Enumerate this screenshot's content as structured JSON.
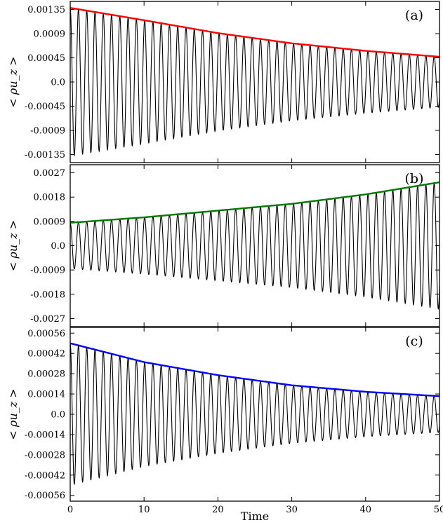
{
  "chart_data": [
    {
      "type": "line",
      "panel_label": "(a)",
      "ylabel": "< ρu_z >",
      "xlabel": "",
      "xlim": [
        0,
        50
      ],
      "ylim": [
        -0.0015,
        0.0015
      ],
      "yticks": [
        0.00135,
        0.0009,
        0.00045,
        0.0,
        -0.00045,
        -0.0009,
        -0.00135
      ],
      "ytick_labels": [
        "0.00135",
        "0.0009",
        "0.00045",
        "0.0",
        "-0.00045",
        "-0.0009",
        "-0.00135"
      ],
      "period": 1.12,
      "series": [
        {
          "role": "oscillation",
          "color": "#000000",
          "x": [
            0,
            10,
            20,
            30,
            40,
            50
          ],
          "amplitude": [
            0.00138,
            0.00115,
            0.00091,
            0.00072,
            0.00058,
            0.00047
          ]
        },
        {
          "role": "envelope",
          "color": "#ff0000",
          "x": [
            0,
            10,
            20,
            30,
            40,
            50
          ],
          "values": [
            0.00138,
            0.00115,
            0.00091,
            0.00072,
            0.00058,
            0.00047
          ]
        }
      ]
    },
    {
      "type": "line",
      "panel_label": "(b)",
      "ylabel": "< ρu_z >",
      "xlabel": "",
      "xlim": [
        0,
        50
      ],
      "ylim": [
        -0.003,
        0.003
      ],
      "yticks": [
        0.0027,
        0.0018,
        0.0009,
        0.0,
        -0.0009,
        -0.0018,
        -0.0027
      ],
      "ytick_labels": [
        "0.0027",
        "0.0018",
        "0.0009",
        "0.0",
        "-0.0009",
        "-0.0018",
        "-0.0027"
      ],
      "period": 1.12,
      "series": [
        {
          "role": "oscillation",
          "color": "#000000",
          "x": [
            0,
            10,
            20,
            30,
            40,
            50
          ],
          "amplitude": [
            0.00085,
            0.00105,
            0.0013,
            0.00155,
            0.0019,
            0.00235
          ]
        },
        {
          "role": "envelope",
          "color": "#007a00",
          "x": [
            0,
            10,
            20,
            30,
            40,
            50
          ],
          "values": [
            0.00085,
            0.00105,
            0.0013,
            0.00155,
            0.0019,
            0.00235
          ]
        }
      ]
    },
    {
      "type": "line",
      "panel_label": "(c)",
      "ylabel": "< ρu_z >",
      "xlabel": "Time",
      "xlim": [
        0,
        50
      ],
      "ylim": [
        -0.0006,
        0.0006
      ],
      "yticks": [
        0.00056,
        0.00042,
        0.00028,
        0.00014,
        0.0,
        -0.00014,
        -0.00028,
        -0.00042,
        -0.00056
      ],
      "ytick_labels": [
        "0.00056",
        "0.00042",
        "0.00028",
        "0.00014",
        "0.0",
        "-0.00014",
        "-0.00028",
        "-0.00042",
        "-0.00056"
      ],
      "xticks": [
        0,
        10,
        20,
        30,
        40,
        50
      ],
      "xtick_labels": [
        "0",
        "10",
        "20",
        "30",
        "40",
        "50"
      ],
      "period": 1.12,
      "series": [
        {
          "role": "oscillation",
          "color": "#000000",
          "x": [
            0,
            10,
            20,
            30,
            40,
            50
          ],
          "amplitude": [
            0.00049,
            0.00036,
            0.00027,
            0.0002,
            0.000155,
            0.000125
          ]
        },
        {
          "role": "envelope",
          "color": "#0000ff",
          "x": [
            0,
            10,
            20,
            30,
            40,
            50
          ],
          "values": [
            0.00049,
            0.00036,
            0.00027,
            0.0002,
            0.000155,
            0.000125
          ]
        }
      ]
    }
  ]
}
